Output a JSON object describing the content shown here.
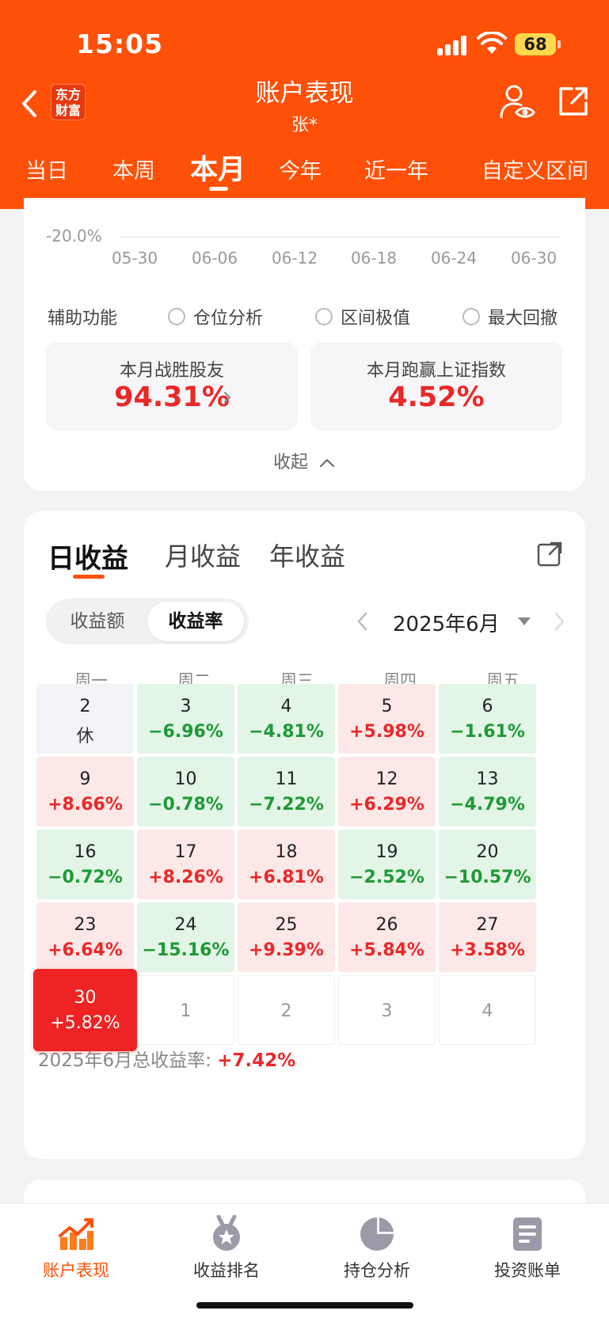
{
  "status": {
    "time": "15:05",
    "battery": "68"
  },
  "header": {
    "logo_line1": "东方",
    "logo_line2": "财富",
    "title": "账户表现",
    "subtitle": "张*"
  },
  "tabs": [
    "当日",
    "本周",
    "本月",
    "今年",
    "近一年",
    "自定义区间"
  ],
  "active_tab": "本月",
  "chart_axis": {
    "y_label": "-20.0%",
    "x_ticks": [
      "05-30",
      "06-06",
      "06-12",
      "06-18",
      "06-24",
      "06-30"
    ]
  },
  "aux": {
    "label": "辅助功能",
    "options": [
      "仓位分析",
      "区间极值",
      "最大回撤"
    ]
  },
  "stats": [
    {
      "label": "本月战胜股友",
      "value": "94.31%"
    },
    {
      "label": "本月跑赢上证指数",
      "value": "4.52%"
    }
  ],
  "collapse_label": "收起",
  "returns": {
    "tabs": [
      "日收益",
      "月收益",
      "年收益"
    ],
    "segment": [
      "收益额",
      "收益率"
    ],
    "month": "2025年6月",
    "weekdays": [
      "周一",
      "周二",
      "周三",
      "周四",
      "周五"
    ],
    "days": [
      {
        "d": "2",
        "v": "休",
        "kind": "rest"
      },
      {
        "d": "3",
        "v": "−6.96%",
        "kind": "down"
      },
      {
        "d": "4",
        "v": "−4.81%",
        "kind": "down"
      },
      {
        "d": "5",
        "v": "+5.98%",
        "kind": "up"
      },
      {
        "d": "6",
        "v": "−1.61%",
        "kind": "down"
      },
      {
        "d": "9",
        "v": "+8.66%",
        "kind": "up"
      },
      {
        "d": "10",
        "v": "−0.78%",
        "kind": "down"
      },
      {
        "d": "11",
        "v": "−7.22%",
        "kind": "down"
      },
      {
        "d": "12",
        "v": "+6.29%",
        "kind": "up"
      },
      {
        "d": "13",
        "v": "−4.79%",
        "kind": "down"
      },
      {
        "d": "16",
        "v": "−0.72%",
        "kind": "down"
      },
      {
        "d": "17",
        "v": "+8.26%",
        "kind": "up"
      },
      {
        "d": "18",
        "v": "+6.81%",
        "kind": "up"
      },
      {
        "d": "19",
        "v": "−2.52%",
        "kind": "down"
      },
      {
        "d": "20",
        "v": "−10.57%",
        "kind": "down"
      },
      {
        "d": "23",
        "v": "+6.64%",
        "kind": "up"
      },
      {
        "d": "24",
        "v": "−15.16%",
        "kind": "down"
      },
      {
        "d": "25",
        "v": "+9.39%",
        "kind": "up"
      },
      {
        "d": "26",
        "v": "+5.84%",
        "kind": "up"
      },
      {
        "d": "27",
        "v": "+3.58%",
        "kind": "up"
      },
      {
        "d": "30",
        "v": "+5.82%",
        "kind": "selected"
      },
      {
        "d": "1",
        "v": "",
        "kind": "future"
      },
      {
        "d": "2",
        "v": "",
        "kind": "future"
      },
      {
        "d": "3",
        "v": "",
        "kind": "future"
      },
      {
        "d": "4",
        "v": "",
        "kind": "future"
      }
    ],
    "total_label": "2025年6月总收益率: ",
    "total_value": "+7.42%"
  },
  "bottom_nav": [
    {
      "label": "账户表现",
      "icon": "trend-chart-icon"
    },
    {
      "label": "收益排名",
      "icon": "medal-icon"
    },
    {
      "label": "持仓分析",
      "icon": "pie-chart-icon"
    },
    {
      "label": "投资账单",
      "icon": "bill-document-icon"
    }
  ],
  "colors": {
    "brand": "#ff5008",
    "up": "#ea2828",
    "down": "#1d9a36"
  }
}
